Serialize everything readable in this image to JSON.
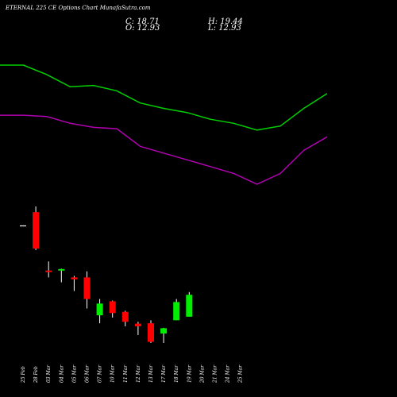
{
  "header": {
    "title": "ETERNAL 225 CE Options Chart MunafaSutra.com",
    "close_label": "C: 18.71",
    "high_label": "H: 19.44",
    "open_label": "O: 12.93",
    "low_label": "L: 12.93"
  },
  "chart_data": {
    "type": "candlestick",
    "title": "ETERNAL 225 CE Options Chart MunafaSutra.com",
    "categories": [
      "25 Feb",
      "28 Feb",
      "03 Mar",
      "04 Mar",
      "05 Mar",
      "06 Mar",
      "07 Mar",
      "10 Mar",
      "11 Mar",
      "12 Mar",
      "13 Mar",
      "17 Mar",
      "18 Mar",
      "19 Mar",
      "20 Mar",
      "21 Mar",
      "24 Mar",
      "25 Mar"
    ],
    "candles": [
      {
        "date": "25 Feb",
        "open": 37.0,
        "high": 37.0,
        "low": 37.0,
        "close": 37.0
      },
      {
        "date": "28 Feb",
        "open": 40.5,
        "high": 42.0,
        "low": 30.5,
        "close": 30.9
      },
      {
        "date": "03 Mar",
        "open": 25.1,
        "high": 27.5,
        "low": 23.3,
        "close": 24.7
      },
      {
        "date": "04 Mar",
        "open": 25.1,
        "high": 25.6,
        "low": 22.0,
        "close": 25.5
      },
      {
        "date": "05 Mar",
        "open": 23.3,
        "high": 23.7,
        "low": 19.7,
        "close": 22.8
      },
      {
        "date": "06 Mar",
        "open": 23.3,
        "high": 24.9,
        "low": 15.1,
        "close": 17.6
      },
      {
        "date": "07 Mar",
        "open": 13.3,
        "high": 17.6,
        "low": 11.2,
        "close": 16.4
      },
      {
        "date": "10 Mar",
        "open": 17.0,
        "high": 17.2,
        "low": 12.7,
        "close": 13.9
      },
      {
        "date": "11 Mar",
        "open": 14.2,
        "high": 14.5,
        "low": 10.4,
        "close": 11.6
      },
      {
        "date": "12 Mar",
        "open": 11.1,
        "high": 11.6,
        "low": 8.1,
        "close": 10.4
      },
      {
        "date": "13 Mar",
        "open": 11.2,
        "high": 12.0,
        "low": 6.0,
        "close": 6.3
      },
      {
        "date": "17 Mar",
        "open": 8.5,
        "high": 10.0,
        "low": 6.0,
        "close": 9.9
      },
      {
        "date": "18 Mar",
        "open": 12.0,
        "high": 17.6,
        "low": 12.0,
        "close": 16.8
      },
      {
        "date": "19 Mar",
        "open": 12.93,
        "high": 19.44,
        "low": 12.93,
        "close": 18.71
      },
      {
        "date": "20 Mar",
        "open": null,
        "high": null,
        "low": null,
        "close": null
      },
      {
        "date": "21 Mar",
        "open": null,
        "high": null,
        "low": null,
        "close": null
      },
      {
        "date": "24 Mar",
        "open": null,
        "high": null,
        "low": null,
        "close": null
      },
      {
        "date": "25 Mar",
        "open": null,
        "high": null,
        "low": null,
        "close": null
      }
    ],
    "candle_dates_visible": [
      "25 Feb",
      "28 Feb",
      "03 Mar",
      "04 Mar",
      "05 Mar",
      "06 Mar",
      "07 Mar",
      "10 Mar",
      "11 Mar",
      "12 Mar",
      "13 Mar",
      "17 Mar",
      "18 Mar",
      "19 Mar"
    ],
    "series": [
      {
        "color": "#00d000",
        "x": [
          0,
          1,
          2,
          3,
          4,
          5,
          6,
          7,
          8,
          9,
          10,
          11,
          12,
          13,
          14
        ],
        "values": [
          92,
          92,
          85,
          76,
          77,
          73,
          64,
          60,
          57,
          52,
          49,
          44,
          47,
          60,
          71
        ]
      },
      {
        "color": "#b000b0",
        "x": [
          0,
          1,
          2,
          3,
          4,
          5,
          6,
          7,
          8,
          9,
          10,
          11,
          12,
          13,
          14
        ],
        "values": [
          55,
          55,
          54,
          49,
          46,
          45,
          32,
          27,
          22,
          17,
          12,
          4,
          12,
          29,
          39
        ]
      }
    ],
    "colors": {
      "up": "#00ee00",
      "down": "#ff0000",
      "doji": "#ffffff",
      "wick": "#ffffff"
    },
    "grid": false,
    "legend": "none"
  }
}
